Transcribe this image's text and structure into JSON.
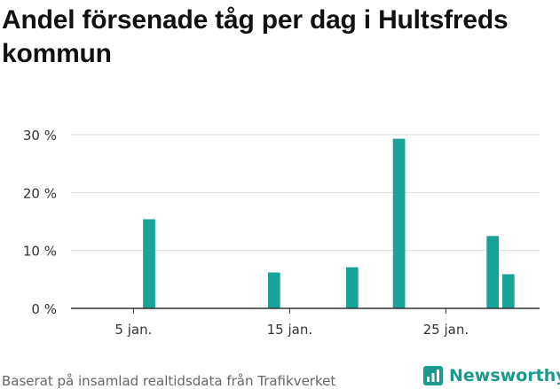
{
  "title": "Andel försenade tåg per dag i Hultsfreds kommun",
  "source": "Baserat på insamlad realtidsdata från Trafikverket",
  "brand": "Newsworthy",
  "colors": {
    "bar": "#17a398",
    "grid": "#dddddd",
    "axis": "#333333",
    "brand": "#1a9a8a"
  },
  "chart_data": {
    "type": "bar",
    "x_type": "date",
    "x": [
      "2025-01-06",
      "2025-01-14",
      "2025-01-19",
      "2025-01-22",
      "2025-01-28",
      "2025-01-29"
    ],
    "values": [
      15.4,
      6.2,
      7.1,
      29.3,
      12.5,
      5.9
    ],
    "xlim": [
      "2025-01-01",
      "2025-01-31"
    ],
    "x_ticks": [
      {
        "date": "2025-01-05",
        "label": "5 jan."
      },
      {
        "date": "2025-01-15",
        "label": "15 jan."
      },
      {
        "date": "2025-01-25",
        "label": "25 jan."
      }
    ],
    "ylim": [
      0,
      30
    ],
    "y_ticks": [
      {
        "value": 0,
        "label": "0 %"
      },
      {
        "value": 10,
        "label": "10 %"
      },
      {
        "value": 20,
        "label": "20 %"
      },
      {
        "value": 30,
        "label": "30 %"
      }
    ],
    "xlabel": "",
    "ylabel": "",
    "grid": true,
    "legend": "none"
  }
}
